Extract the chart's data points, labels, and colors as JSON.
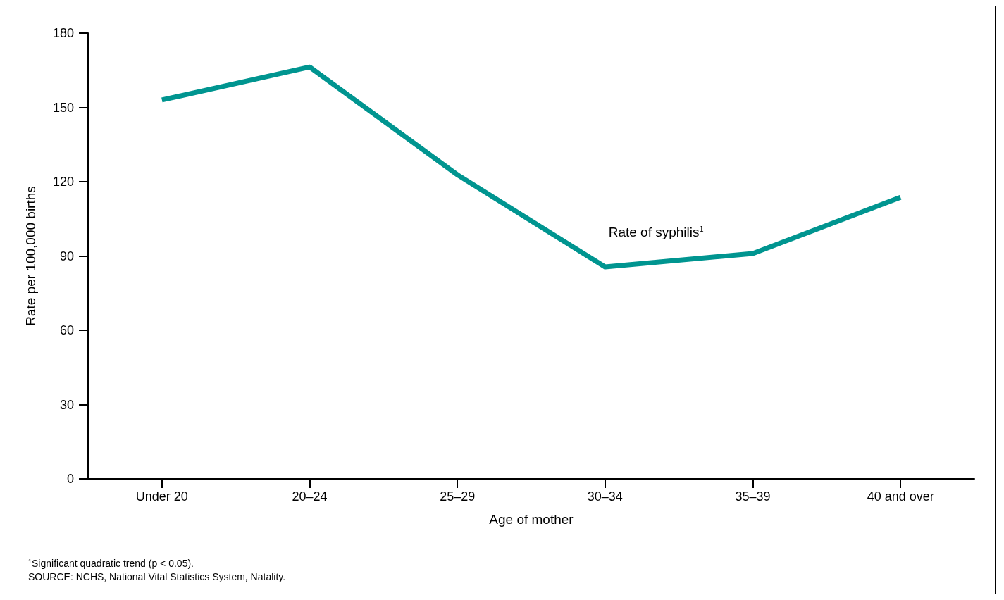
{
  "chart_data": {
    "type": "line",
    "categories": [
      "Under 20",
      "20–24",
      "25–29",
      "30–34",
      "35–39",
      "40 and over"
    ],
    "series": [
      {
        "name": "Rate of syphilis$^{1}$",
        "color": "#009590",
        "values": [
          153.0,
          166.3,
          122.8,
          85.6,
          91.0,
          113.7
        ]
      }
    ],
    "xlabel": "Age of mother",
    "ylabel": "Rate per 100,000 births",
    "ylim": [
      0,
      180
    ],
    "yticks": [
      0,
      30,
      60,
      90,
      120,
      150,
      180
    ],
    "grid": false,
    "marker": "none",
    "line_style": "solid",
    "annotations": [
      "$^{1}$Significant quadratic trend (p < 0.05).",
      "SOURCE: NCHS, National Vital Statistics System, Natality."
    ]
  }
}
